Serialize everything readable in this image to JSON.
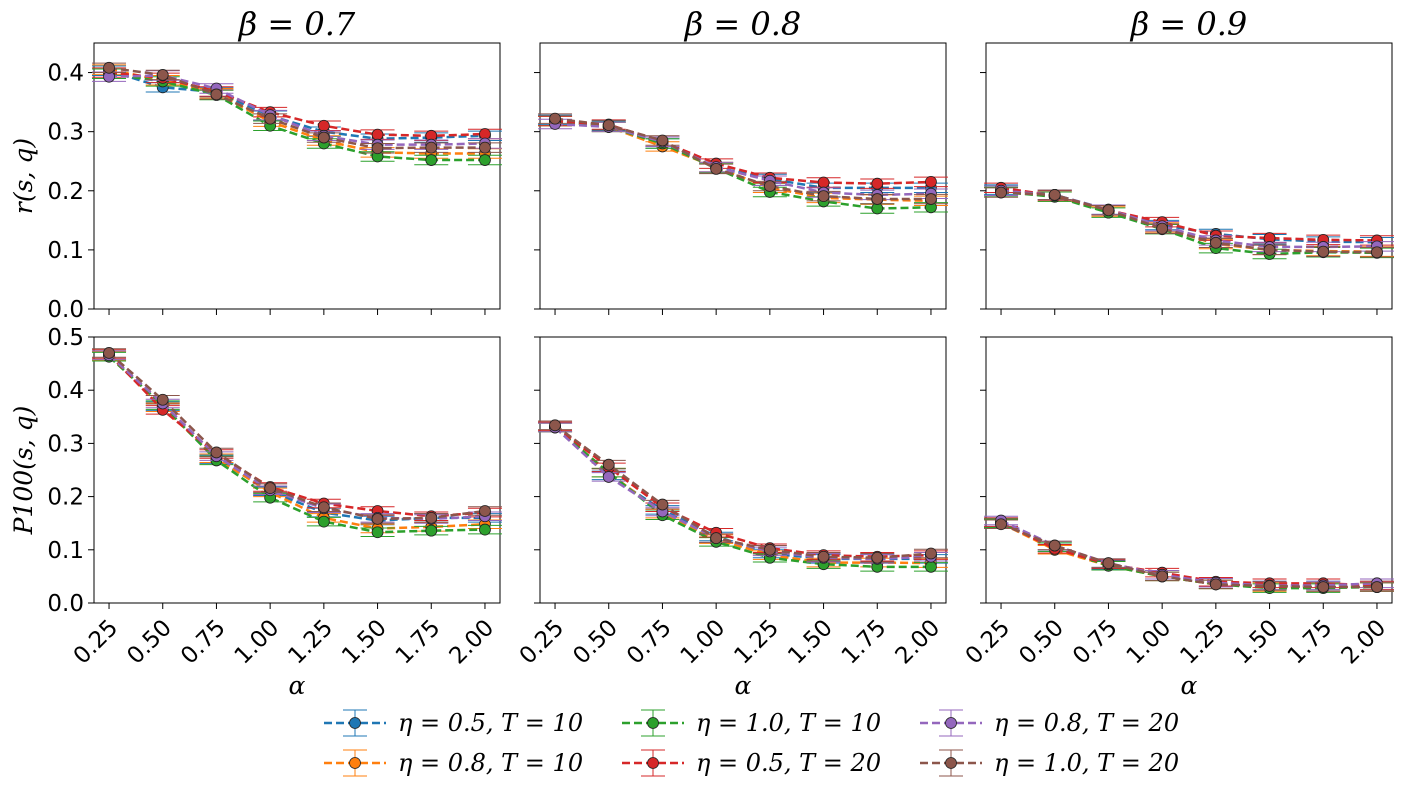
{
  "chart_data": {
    "type": "line",
    "x": [
      0.25,
      0.5,
      0.75,
      1.0,
      1.25,
      1.5,
      1.75,
      2.0
    ],
    "x_ticks": [
      "0.25",
      "0.50",
      "0.75",
      "1.00",
      "1.25",
      "1.50",
      "1.75",
      "2.00"
    ],
    "xlabel": "α",
    "rows": [
      {
        "ylabel": "r(s, q)",
        "ylim": [
          0.0,
          0.45
        ],
        "y_ticks": [
          "0.0",
          "0.1",
          "0.2",
          "0.3",
          "0.4"
        ]
      },
      {
        "ylabel": "P100(s, q)",
        "ylim": [
          0.0,
          0.5
        ],
        "y_ticks": [
          "0.0",
          "0.1",
          "0.2",
          "0.3",
          "0.4",
          "0.5"
        ]
      }
    ],
    "columns": [
      "β = 0.7",
      "β = 0.8",
      "β = 0.9"
    ],
    "series_styles": [
      {
        "name": "η = 0.5, T = 10",
        "color": "#1f77b4"
      },
      {
        "name": "η = 0.8, T = 10",
        "color": "#ff7f0e"
      },
      {
        "name": "η = 1.0, T = 10",
        "color": "#2ca02c"
      },
      {
        "name": "η = 0.5, T = 20",
        "color": "#d62728"
      },
      {
        "name": "η = 0.8, T = 20",
        "color": "#9467bd"
      },
      {
        "name": "η = 1.0, T = 20",
        "color": "#8c564b"
      }
    ],
    "panels": [
      {
        "row": 0,
        "col": 0,
        "series": [
          [
            0.403,
            0.375,
            0.367,
            0.327,
            0.3,
            0.288,
            0.29,
            0.293
          ],
          [
            0.405,
            0.387,
            0.365,
            0.317,
            0.285,
            0.265,
            0.263,
            0.263
          ],
          [
            0.398,
            0.385,
            0.362,
            0.31,
            0.28,
            0.258,
            0.252,
            0.252
          ],
          [
            0.4,
            0.391,
            0.368,
            0.333,
            0.31,
            0.295,
            0.293,
            0.296
          ],
          [
            0.393,
            0.395,
            0.373,
            0.328,
            0.293,
            0.278,
            0.278,
            0.28
          ],
          [
            0.408,
            0.396,
            0.363,
            0.322,
            0.29,
            0.272,
            0.273,
            0.273
          ]
        ]
      },
      {
        "row": 0,
        "col": 1,
        "series": [
          [
            0.32,
            0.31,
            0.28,
            0.24,
            0.22,
            0.205,
            0.205,
            0.205
          ],
          [
            0.318,
            0.308,
            0.275,
            0.24,
            0.205,
            0.188,
            0.185,
            0.183
          ],
          [
            0.318,
            0.308,
            0.28,
            0.238,
            0.198,
            0.182,
            0.17,
            0.172
          ],
          [
            0.318,
            0.312,
            0.283,
            0.246,
            0.222,
            0.214,
            0.212,
            0.215
          ],
          [
            0.313,
            0.308,
            0.283,
            0.24,
            0.217,
            0.197,
            0.193,
            0.195
          ],
          [
            0.322,
            0.311,
            0.285,
            0.237,
            0.208,
            0.191,
            0.186,
            0.186
          ]
        ]
      },
      {
        "row": 0,
        "col": 2,
        "series": [
          [
            0.202,
            0.193,
            0.168,
            0.142,
            0.127,
            0.118,
            0.114,
            0.113
          ],
          [
            0.2,
            0.19,
            0.165,
            0.138,
            0.11,
            0.1,
            0.098,
            0.097
          ],
          [
            0.198,
            0.19,
            0.163,
            0.135,
            0.103,
            0.093,
            0.096,
            0.095
          ],
          [
            0.205,
            0.192,
            0.167,
            0.147,
            0.124,
            0.12,
            0.117,
            0.116
          ],
          [
            0.2,
            0.193,
            0.168,
            0.14,
            0.116,
            0.105,
            0.105,
            0.106
          ],
          [
            0.197,
            0.193,
            0.167,
            0.136,
            0.112,
            0.1,
            0.097,
            0.096
          ]
        ]
      },
      {
        "row": 1,
        "col": 0,
        "series": [
          [
            0.465,
            0.37,
            0.27,
            0.21,
            0.17,
            0.155,
            0.16,
            0.16
          ],
          [
            0.465,
            0.368,
            0.272,
            0.208,
            0.16,
            0.14,
            0.143,
            0.148
          ],
          [
            0.463,
            0.372,
            0.268,
            0.198,
            0.153,
            0.133,
            0.136,
            0.138
          ],
          [
            0.468,
            0.363,
            0.28,
            0.218,
            0.187,
            0.173,
            0.163,
            0.17
          ],
          [
            0.466,
            0.375,
            0.276,
            0.212,
            0.178,
            0.16,
            0.158,
            0.163
          ],
          [
            0.47,
            0.382,
            0.283,
            0.216,
            0.18,
            0.158,
            0.16,
            0.173
          ]
        ]
      },
      {
        "row": 1,
        "col": 1,
        "series": [
          [
            0.33,
            0.24,
            0.175,
            0.125,
            0.093,
            0.083,
            0.083,
            0.083
          ],
          [
            0.33,
            0.245,
            0.168,
            0.12,
            0.09,
            0.076,
            0.076,
            0.075
          ],
          [
            0.33,
            0.245,
            0.165,
            0.115,
            0.085,
            0.073,
            0.068,
            0.068
          ],
          [
            0.332,
            0.255,
            0.18,
            0.132,
            0.103,
            0.09,
            0.087,
            0.09
          ],
          [
            0.33,
            0.237,
            0.172,
            0.122,
            0.097,
            0.085,
            0.083,
            0.087
          ],
          [
            0.334,
            0.26,
            0.185,
            0.122,
            0.1,
            0.087,
            0.085,
            0.093
          ]
        ]
      },
      {
        "row": 1,
        "col": 2,
        "series": [
          [
            0.152,
            0.105,
            0.072,
            0.053,
            0.038,
            0.033,
            0.033,
            0.033
          ],
          [
            0.15,
            0.1,
            0.07,
            0.05,
            0.035,
            0.03,
            0.03,
            0.03
          ],
          [
            0.15,
            0.105,
            0.07,
            0.05,
            0.035,
            0.028,
            0.028,
            0.03
          ],
          [
            0.152,
            0.102,
            0.073,
            0.057,
            0.04,
            0.037,
            0.037,
            0.033
          ],
          [
            0.155,
            0.108,
            0.075,
            0.053,
            0.038,
            0.033,
            0.033,
            0.037
          ],
          [
            0.148,
            0.108,
            0.075,
            0.05,
            0.035,
            0.032,
            0.03,
            0.03
          ]
        ]
      }
    ],
    "grid": false,
    "legend": "bottom-center"
  }
}
